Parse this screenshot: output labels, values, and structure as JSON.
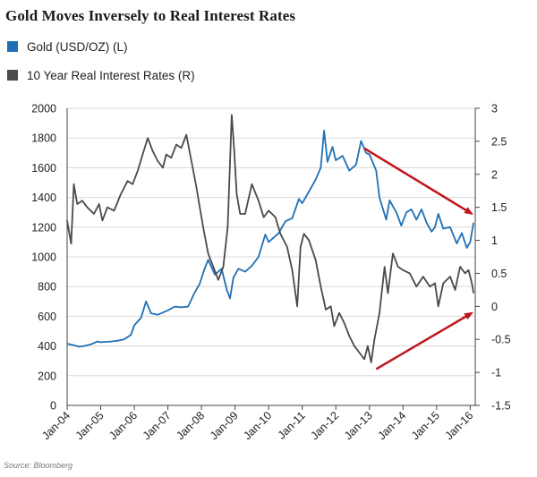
{
  "chart_data": {
    "type": "line",
    "title": "Gold Moves Inversely to Real Interest Rates",
    "source": "Source: Bloomberg",
    "x_categories": [
      "Jan-04",
      "Jan-05",
      "Jan-06",
      "Jan-07",
      "Jan-08",
      "Jan-09",
      "Jan-10",
      "Jan-11",
      "Jan-12",
      "Jan-13",
      "Jan-14",
      "Jan-15",
      "Jan-16"
    ],
    "y_left": {
      "ticks": [
        0,
        200,
        400,
        600,
        800,
        1000,
        1200,
        1400,
        1600,
        1800,
        2000
      ],
      "range": [
        0,
        2000
      ]
    },
    "y_right": {
      "ticks": [
        3,
        2.5,
        2,
        1.5,
        1,
        0.5,
        0,
        -0.5,
        -1,
        -1.5
      ],
      "range": [
        -1.5,
        3
      ]
    },
    "grid": "horizontal",
    "legend_position": "top-left",
    "series": [
      {
        "name": "Gold (USD/OZ) (L)",
        "axis": "left",
        "color": "#1f6fb5",
        "points": [
          [
            2004.0,
            415
          ],
          [
            2004.2,
            405
          ],
          [
            2004.35,
            395
          ],
          [
            2004.5,
            400
          ],
          [
            2004.7,
            410
          ],
          [
            2004.9,
            430
          ],
          [
            2005.0,
            425
          ],
          [
            2005.3,
            430
          ],
          [
            2005.5,
            435
          ],
          [
            2005.7,
            445
          ],
          [
            2005.9,
            475
          ],
          [
            2006.0,
            540
          ],
          [
            2006.2,
            590
          ],
          [
            2006.35,
            700
          ],
          [
            2006.5,
            620
          ],
          [
            2006.7,
            610
          ],
          [
            2006.9,
            630
          ],
          [
            2007.0,
            640
          ],
          [
            2007.2,
            665
          ],
          [
            2007.4,
            660
          ],
          [
            2007.6,
            665
          ],
          [
            2007.8,
            760
          ],
          [
            2007.95,
            820
          ],
          [
            2008.1,
            925
          ],
          [
            2008.2,
            980
          ],
          [
            2008.4,
            880
          ],
          [
            2008.6,
            920
          ],
          [
            2008.75,
            780
          ],
          [
            2008.85,
            720
          ],
          [
            2008.95,
            860
          ],
          [
            2009.1,
            920
          ],
          [
            2009.3,
            900
          ],
          [
            2009.5,
            940
          ],
          [
            2009.7,
            1000
          ],
          [
            2009.9,
            1150
          ],
          [
            2010.0,
            1100
          ],
          [
            2010.3,
            1160
          ],
          [
            2010.5,
            1240
          ],
          [
            2010.7,
            1260
          ],
          [
            2010.9,
            1390
          ],
          [
            2011.0,
            1360
          ],
          [
            2011.2,
            1440
          ],
          [
            2011.4,
            1520
          ],
          [
            2011.55,
            1600
          ],
          [
            2011.65,
            1850
          ],
          [
            2011.75,
            1640
          ],
          [
            2011.9,
            1740
          ],
          [
            2012.0,
            1650
          ],
          [
            2012.2,
            1680
          ],
          [
            2012.4,
            1580
          ],
          [
            2012.6,
            1620
          ],
          [
            2012.75,
            1780
          ],
          [
            2012.9,
            1700
          ],
          [
            2013.0,
            1690
          ],
          [
            2013.2,
            1580
          ],
          [
            2013.3,
            1400
          ],
          [
            2013.5,
            1250
          ],
          [
            2013.6,
            1380
          ],
          [
            2013.8,
            1300
          ],
          [
            2013.95,
            1210
          ],
          [
            2014.1,
            1300
          ],
          [
            2014.25,
            1320
          ],
          [
            2014.4,
            1250
          ],
          [
            2014.55,
            1320
          ],
          [
            2014.7,
            1230
          ],
          [
            2014.85,
            1170
          ],
          [
            2014.95,
            1200
          ],
          [
            2015.05,
            1290
          ],
          [
            2015.2,
            1190
          ],
          [
            2015.4,
            1200
          ],
          [
            2015.6,
            1090
          ],
          [
            2015.75,
            1160
          ],
          [
            2015.9,
            1060
          ],
          [
            2016.0,
            1100
          ],
          [
            2016.1,
            1230
          ]
        ]
      },
      {
        "name": "10 Year Real Interest Rates (R)",
        "axis": "right",
        "color": "#4a4a4a",
        "points": [
          [
            2004.0,
            1.3
          ],
          [
            2004.05,
            1.15
          ],
          [
            2004.12,
            0.95
          ],
          [
            2004.2,
            1.85
          ],
          [
            2004.3,
            1.55
          ],
          [
            2004.45,
            1.6
          ],
          [
            2004.6,
            1.5
          ],
          [
            2004.8,
            1.4
          ],
          [
            2004.95,
            1.55
          ],
          [
            2005.05,
            1.3
          ],
          [
            2005.2,
            1.5
          ],
          [
            2005.4,
            1.45
          ],
          [
            2005.6,
            1.7
          ],
          [
            2005.8,
            1.9
          ],
          [
            2005.95,
            1.85
          ],
          [
            2006.1,
            2.05
          ],
          [
            2006.25,
            2.3
          ],
          [
            2006.4,
            2.55
          ],
          [
            2006.55,
            2.35
          ],
          [
            2006.7,
            2.2
          ],
          [
            2006.85,
            2.1
          ],
          [
            2006.95,
            2.3
          ],
          [
            2007.1,
            2.25
          ],
          [
            2007.25,
            2.45
          ],
          [
            2007.4,
            2.4
          ],
          [
            2007.55,
            2.6
          ],
          [
            2007.7,
            2.2
          ],
          [
            2007.85,
            1.8
          ],
          [
            2007.95,
            1.5
          ],
          [
            2008.05,
            1.2
          ],
          [
            2008.2,
            0.8
          ],
          [
            2008.35,
            0.6
          ],
          [
            2008.5,
            0.4
          ],
          [
            2008.65,
            0.6
          ],
          [
            2008.78,
            1.2
          ],
          [
            2008.9,
            2.9
          ],
          [
            2008.97,
            2.4
          ],
          [
            2009.05,
            1.7
          ],
          [
            2009.15,
            1.4
          ],
          [
            2009.3,
            1.4
          ],
          [
            2009.5,
            1.85
          ],
          [
            2009.7,
            1.6
          ],
          [
            2009.85,
            1.35
          ],
          [
            2010.0,
            1.45
          ],
          [
            2010.2,
            1.35
          ],
          [
            2010.35,
            1.1
          ],
          [
            2010.55,
            0.9
          ],
          [
            2010.7,
            0.55
          ],
          [
            2010.85,
            0.0
          ],
          [
            2010.95,
            0.9
          ],
          [
            2011.05,
            1.1
          ],
          [
            2011.2,
            1.0
          ],
          [
            2011.4,
            0.7
          ],
          [
            2011.55,
            0.3
          ],
          [
            2011.7,
            -0.05
          ],
          [
            2011.85,
            0.0
          ],
          [
            2011.95,
            -0.3
          ],
          [
            2012.1,
            -0.1
          ],
          [
            2012.25,
            -0.25
          ],
          [
            2012.4,
            -0.45
          ],
          [
            2012.55,
            -0.6
          ],
          [
            2012.7,
            -0.7
          ],
          [
            2012.85,
            -0.8
          ],
          [
            2012.95,
            -0.6
          ],
          [
            2013.05,
            -0.85
          ],
          [
            2013.15,
            -0.5
          ],
          [
            2013.3,
            -0.1
          ],
          [
            2013.45,
            0.6
          ],
          [
            2013.55,
            0.2
          ],
          [
            2013.7,
            0.8
          ],
          [
            2013.85,
            0.6
          ],
          [
            2014.0,
            0.55
          ],
          [
            2014.2,
            0.5
          ],
          [
            2014.4,
            0.3
          ],
          [
            2014.6,
            0.45
          ],
          [
            2014.8,
            0.3
          ],
          [
            2014.95,
            0.35
          ],
          [
            2015.05,
            0.0
          ],
          [
            2015.2,
            0.35
          ],
          [
            2015.4,
            0.45
          ],
          [
            2015.55,
            0.25
          ],
          [
            2015.7,
            0.6
          ],
          [
            2015.85,
            0.5
          ],
          [
            2015.95,
            0.55
          ],
          [
            2016.05,
            0.35
          ],
          [
            2016.1,
            0.2
          ]
        ]
      }
    ],
    "annotations": [
      {
        "type": "arrow",
        "color": "#c0161c",
        "from": [
          2012.85,
          1730
        ],
        "to": [
          2016.05,
          1290
        ],
        "axis": "left"
      },
      {
        "type": "arrow",
        "color": "#c0161c",
        "from": [
          2013.2,
          -0.95
        ],
        "to": [
          2016.05,
          -0.1
        ],
        "axis": "right"
      }
    ]
  }
}
